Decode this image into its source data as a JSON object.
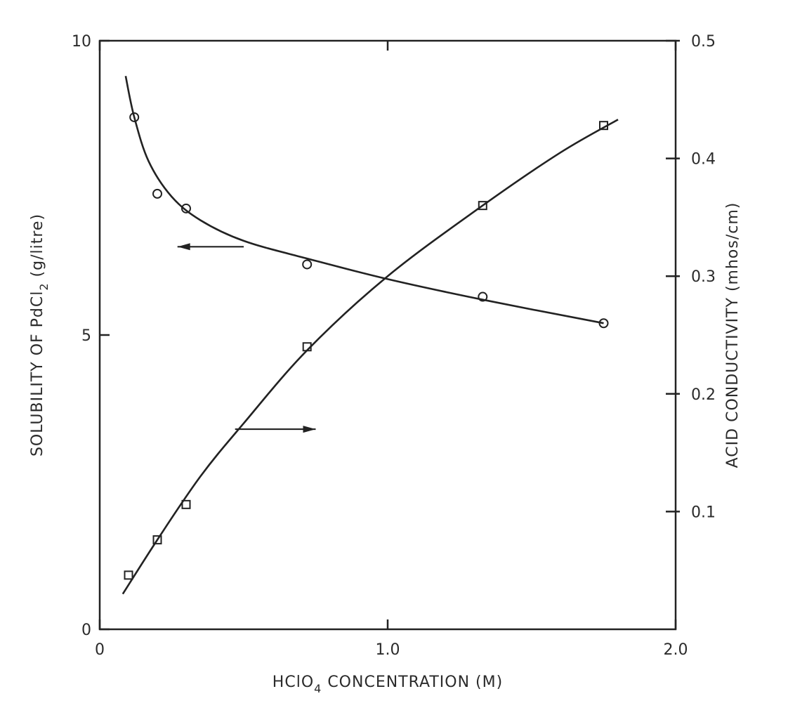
{
  "chart_data": {
    "type": "line",
    "title": "",
    "xlabel_text": "HClO",
    "xlabel_sub": "4",
    "xlabel_tail": " CONCENTRATION (M)",
    "ylabel_left_text": "SOLUBILITY OF PdCl",
    "ylabel_left_sub": "2",
    "ylabel_left_tail": " (g/litre)",
    "ylabel_right": "ACID CONDUCTIVITY (mhos/cm)",
    "xlim": [
      0,
      2.0
    ],
    "ylim_left": [
      0,
      10
    ],
    "ylim_right": [
      0.0,
      0.5
    ],
    "right_axis_floor": 0.0,
    "x_ticks": [
      {
        "value": 0,
        "label": "0"
      },
      {
        "value": 1.0,
        "label": "1.0"
      },
      {
        "value": 2.0,
        "label": "2.0"
      }
    ],
    "y_left_ticks": [
      {
        "value": 0,
        "label": "0"
      },
      {
        "value": 5,
        "label": "5"
      },
      {
        "value": 10,
        "label": "10"
      }
    ],
    "y_right_ticks": [
      {
        "value": 0.1,
        "label": "0.1"
      },
      {
        "value": 0.2,
        "label": "0.2"
      },
      {
        "value": 0.3,
        "label": "0.3"
      },
      {
        "value": 0.4,
        "label": "0.4"
      },
      {
        "value": 0.5,
        "label": "0.5"
      }
    ],
    "grid": false,
    "series": [
      {
        "axis": "left",
        "marker": "circle",
        "points": [
          {
            "x": 0.12,
            "y": 8.7
          },
          {
            "x": 0.2,
            "y": 7.4
          },
          {
            "x": 0.3,
            "y": 7.15
          },
          {
            "x": 0.72,
            "y": 6.2
          },
          {
            "x": 1.33,
            "y": 5.65
          },
          {
            "x": 1.75,
            "y": 5.2
          }
        ],
        "curve": [
          {
            "x": 0.09,
            "y": 9.4
          },
          {
            "x": 0.12,
            "y": 8.7
          },
          {
            "x": 0.17,
            "y": 7.95
          },
          {
            "x": 0.25,
            "y": 7.35
          },
          {
            "x": 0.35,
            "y": 6.95
          },
          {
            "x": 0.5,
            "y": 6.6
          },
          {
            "x": 0.72,
            "y": 6.3
          },
          {
            "x": 1.0,
            "y": 5.95
          },
          {
            "x": 1.33,
            "y": 5.6
          },
          {
            "x": 1.75,
            "y": 5.2
          }
        ]
      },
      {
        "axis": "right",
        "marker": "square",
        "points": [
          {
            "x": 0.1,
            "y": 0.046
          },
          {
            "x": 0.2,
            "y": 0.076
          },
          {
            "x": 0.3,
            "y": 0.106
          },
          {
            "x": 0.72,
            "y": 0.24
          },
          {
            "x": 1.33,
            "y": 0.36
          },
          {
            "x": 1.75,
            "y": 0.428
          }
        ],
        "curve": [
          {
            "x": 0.08,
            "y": 0.03
          },
          {
            "x": 0.2,
            "y": 0.076
          },
          {
            "x": 0.35,
            "y": 0.13
          },
          {
            "x": 0.5,
            "y": 0.175
          },
          {
            "x": 0.72,
            "y": 0.237
          },
          {
            "x": 1.0,
            "y": 0.3
          },
          {
            "x": 1.33,
            "y": 0.36
          },
          {
            "x": 1.6,
            "y": 0.405
          },
          {
            "x": 1.8,
            "y": 0.433
          }
        ]
      }
    ],
    "annotations": [
      {
        "arrow": "left",
        "series_axis": "left",
        "x_from": 0.5,
        "x_to": 0.27,
        "y": 6.5
      },
      {
        "arrow": "right",
        "series_axis": "right",
        "x_from": 0.47,
        "x_to": 0.75,
        "y": 0.17
      }
    ]
  }
}
